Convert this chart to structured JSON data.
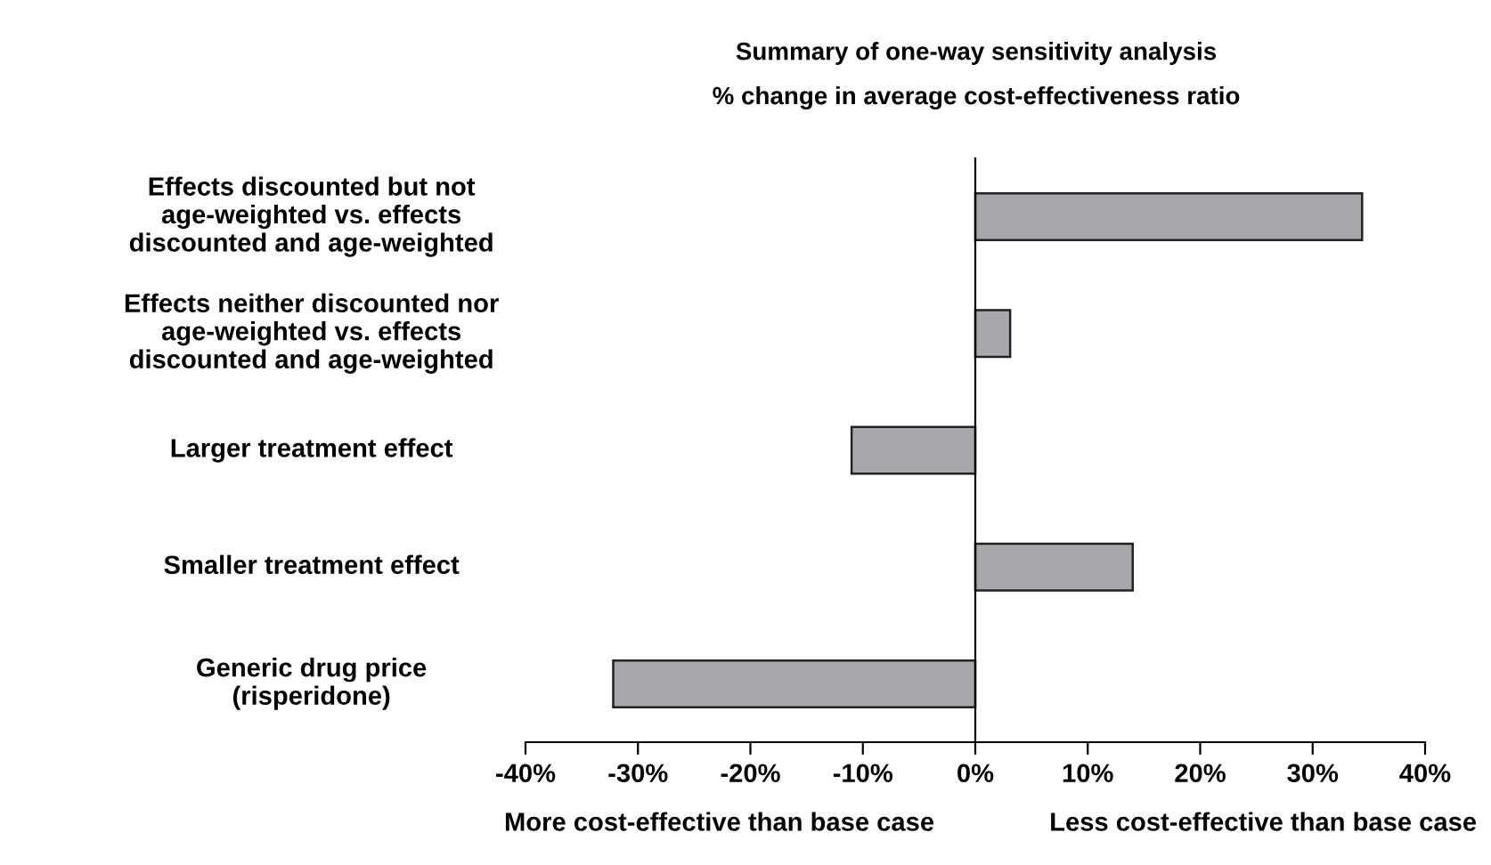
{
  "chart_data": {
    "type": "bar",
    "orientation": "horizontal",
    "title": "Summary of one-way sensitivity analysis",
    "subtitle": "% change in average cost-effectiveness ratio",
    "categories": [
      "Effects discounted but not\nage-weighted vs. effects\ndiscounted and age-weighted",
      "Effects neither discounted nor\nage-weighted vs. effects\ndiscounted and age-weighted",
      "Larger treatment effect",
      "Smaller treatment effect",
      "Generic drug price\n(risperidone)"
    ],
    "values": [
      34.4,
      3.1,
      -11.0,
      14.0,
      -32.2
    ],
    "color": "#a8a8ac",
    "xlim": [
      -40,
      40
    ],
    "xticks": [
      {
        "value": -40,
        "label": "-40%"
      },
      {
        "value": -30,
        "label": "-30%"
      },
      {
        "value": -20,
        "label": "-20%"
      },
      {
        "value": -10,
        "label": "-10%"
      },
      {
        "value": 0,
        "label": "0%"
      },
      {
        "value": 10,
        "label": "10%"
      },
      {
        "value": 20,
        "label": "20%"
      },
      {
        "value": 30,
        "label": "30%"
      },
      {
        "value": 40,
        "label": "40%"
      }
    ],
    "annotations": [
      "More cost-effective than base case",
      "Less cost-effective than base case"
    ],
    "legend": false
  }
}
